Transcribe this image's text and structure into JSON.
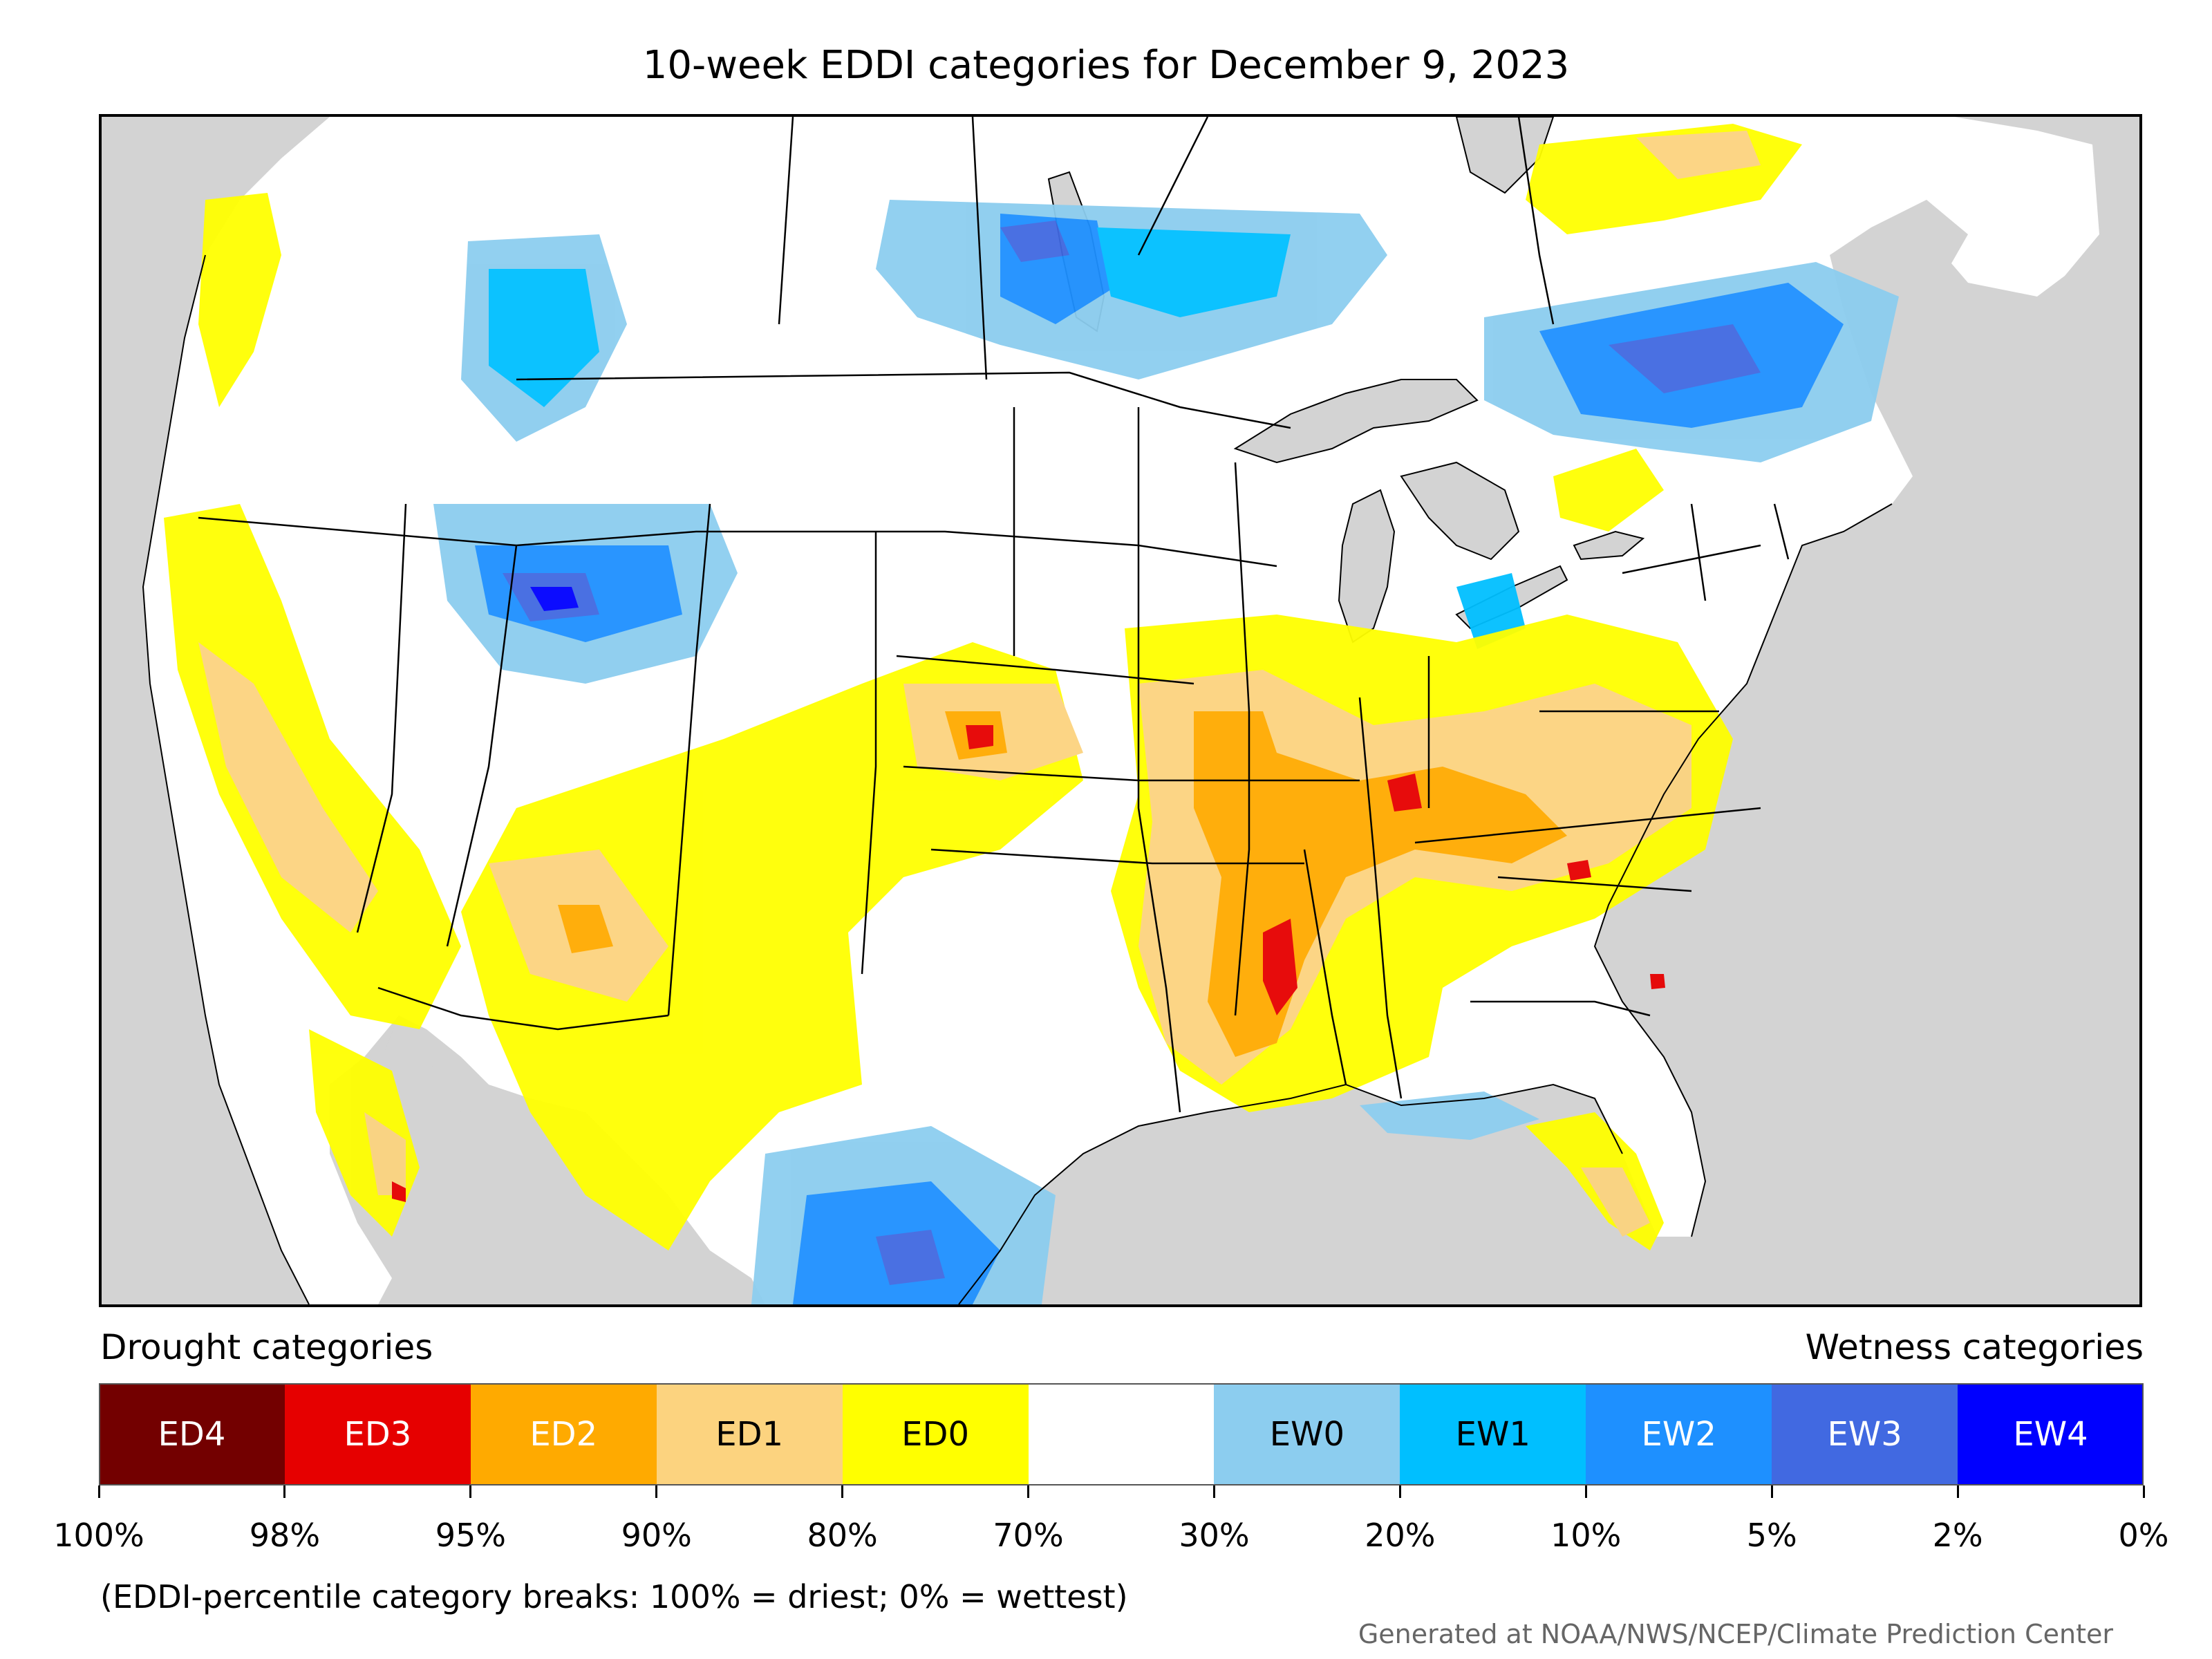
{
  "title": "10-week EDDI categories for December 9, 2023",
  "legend": {
    "drought_heading": "Drought categories",
    "wetness_heading": "Wetness categories",
    "categories": [
      {
        "label": "ED4",
        "color": "#730000",
        "text_color": "#ffffff"
      },
      {
        "label": "ED3",
        "color": "#e60000",
        "text_color": "#ffffff"
      },
      {
        "label": "ED2",
        "color": "#ffaa00",
        "text_color": "#ffffff"
      },
      {
        "label": "ED1",
        "color": "#fcd37f",
        "text_color": "#000000"
      },
      {
        "label": "ED0",
        "color": "#ffff00",
        "text_color": "#000000"
      },
      {
        "label": "",
        "color": "#ffffff",
        "text_color": "#000000"
      },
      {
        "label": "EW0",
        "color": "#8ccdef",
        "text_color": "#000000"
      },
      {
        "label": "EW1",
        "color": "#00bfff",
        "text_color": "#000000"
      },
      {
        "label": "EW2",
        "color": "#1e90ff",
        "text_color": "#ffffff"
      },
      {
        "label": "EW3",
        "color": "#4169e1",
        "text_color": "#ffffff"
      },
      {
        "label": "EW4",
        "color": "#0000ff",
        "text_color": "#ffffff"
      }
    ],
    "breaks": [
      "100%",
      "98%",
      "95%",
      "90%",
      "80%",
      "70%",
      "30%",
      "20%",
      "10%",
      "5%",
      "2%",
      "0%"
    ]
  },
  "note": "(EDDI-percentile category breaks: 100% = driest; 0% = wettest)",
  "credit": "Generated at NOAA/NWS/NCEP/Climate Prediction Center",
  "map": {
    "ocean_color": "#d3d3d3",
    "land_color": "#ffffff"
  }
}
